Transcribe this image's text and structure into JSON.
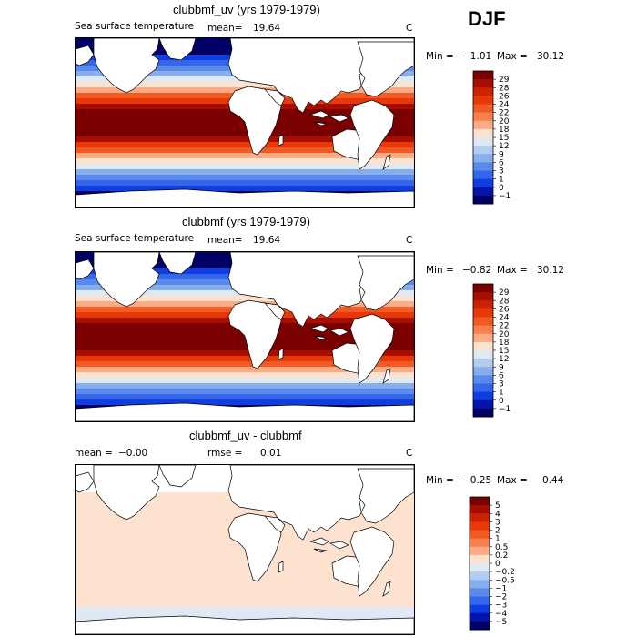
{
  "season": "DJF",
  "panels": [
    {
      "title": "clubbmf_uv (yrs 1979-1979)",
      "variable": "Sea surface temperature",
      "mean_label": "mean=",
      "mean_value": "19.64",
      "units": "C",
      "min_label": "Min =",
      "min_value": "−1.01",
      "max_label": "Max =",
      "max_value": "30.12"
    },
    {
      "title": "clubbmf (yrs 1979-1979)",
      "variable": "Sea surface temperature",
      "mean_label": "mean=",
      "mean_value": "19.64",
      "units": "C",
      "min_label": "Min =",
      "min_value": "−0.82",
      "max_label": "Max =",
      "max_value": "30.12"
    },
    {
      "title": "clubbmf_uv - clubbmf",
      "mean_label": "mean =",
      "mean_value": "−0.00",
      "rmse_label": "rmse =",
      "rmse_value": "0.01",
      "units": "C",
      "min_label": "Min =",
      "min_value": "−0.25",
      "max_label": "Max =",
      "max_value": "0.44"
    }
  ],
  "chart_data": [
    {
      "type": "heatmap",
      "title": "clubbmf_uv (yrs 1979-1979)",
      "subtitle": "Sea surface temperature",
      "field_mean": 19.64,
      "field_min": -1.01,
      "field_max": 30.12,
      "units": "C",
      "colorbar_labels": [
        "29",
        "28",
        "26",
        "24",
        "22",
        "20",
        "18",
        "15",
        "12",
        "9",
        "6",
        "3",
        "1",
        "0",
        "−1"
      ],
      "colorbar_colors": [
        "#7a0000",
        "#a80e00",
        "#cc2200",
        "#e83808",
        "#f25a24",
        "#f7804e",
        "#fbab86",
        "#fde3cf",
        "#dfe9f6",
        "#b3cdf0",
        "#86aeec",
        "#5a8bec",
        "#3466ec",
        "#103de0",
        "#0414a8",
        "#000066"
      ]
    },
    {
      "type": "heatmap",
      "title": "clubbmf (yrs 1979-1979)",
      "subtitle": "Sea surface temperature",
      "field_mean": 19.64,
      "field_min": -0.82,
      "field_max": 30.12,
      "units": "C",
      "colorbar_labels": [
        "29",
        "28",
        "26",
        "24",
        "22",
        "20",
        "18",
        "15",
        "12",
        "9",
        "6",
        "3",
        "1",
        "0",
        "−1"
      ],
      "colorbar_colors": [
        "#7a0000",
        "#a80e00",
        "#cc2200",
        "#e83808",
        "#f25a24",
        "#f7804e",
        "#fbab86",
        "#fde3cf",
        "#dfe9f6",
        "#b3cdf0",
        "#86aeec",
        "#5a8bec",
        "#3466ec",
        "#103de0",
        "#0414a8",
        "#000066"
      ]
    },
    {
      "type": "heatmap",
      "title": "clubbmf_uv - clubbmf",
      "field_mean": -0.0,
      "rmse": 0.01,
      "field_min": -0.25,
      "field_max": 0.44,
      "units": "C",
      "colorbar_labels": [
        "5",
        "4",
        "3",
        "2",
        "1",
        "0.5",
        "0.2",
        "0",
        "−0.2",
        "−0.5",
        "−1",
        "−2",
        "−3",
        "−4",
        "−5"
      ],
      "colorbar_colors": [
        "#7a0000",
        "#a80e00",
        "#cc2200",
        "#e83808",
        "#f25a24",
        "#f7804e",
        "#fbab86",
        "#fde3cf",
        "#dfe9f6",
        "#b3cdf0",
        "#86aeec",
        "#5a8bec",
        "#3466ec",
        "#103de0",
        "#0414a8",
        "#000066"
      ]
    }
  ]
}
